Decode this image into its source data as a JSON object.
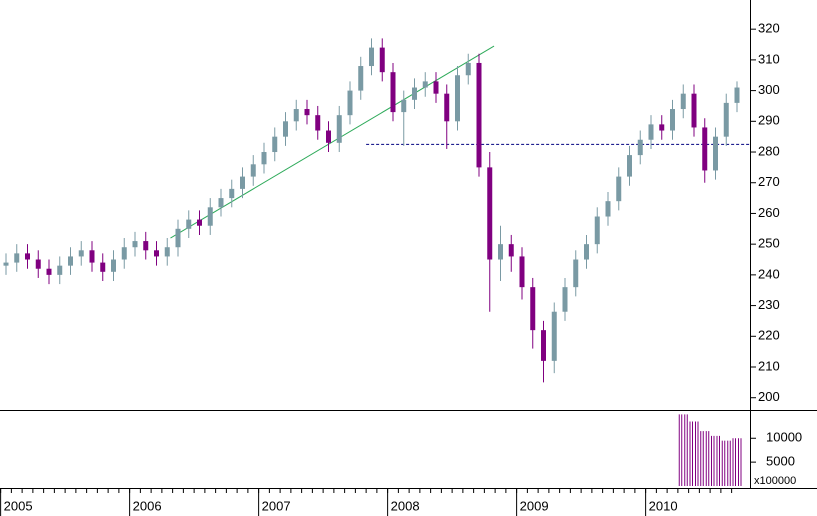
{
  "chart_data": [
    {
      "type": "candlestick",
      "categories": [
        "2005",
        null,
        null,
        null,
        null,
        null,
        null,
        null,
        null,
        null,
        null,
        null,
        "2006",
        null,
        null,
        null,
        null,
        null,
        null,
        null,
        null,
        null,
        null,
        null,
        "2007",
        null,
        null,
        null,
        null,
        null,
        null,
        null,
        null,
        null,
        null,
        null,
        "2008",
        null,
        null,
        null,
        null,
        null,
        null,
        null,
        null,
        null,
        null,
        null,
        "2009",
        null,
        null,
        null,
        null,
        null,
        null,
        null,
        null,
        null,
        null,
        null,
        "2010",
        null,
        null,
        null,
        null,
        null,
        null,
        null,
        null
      ],
      "open": [
        243,
        244,
        247,
        245,
        242,
        240,
        243,
        246,
        248,
        244,
        241,
        245,
        249,
        251,
        248,
        246,
        249,
        255,
        258,
        256,
        262,
        265,
        268,
        272,
        276,
        280,
        285,
        290,
        294,
        292,
        287,
        283,
        292,
        300,
        308,
        314,
        306,
        293,
        297,
        301,
        303,
        299,
        290,
        305,
        309,
        275,
        245,
        250,
        246,
        236,
        222,
        212,
        228,
        236,
        245,
        250,
        259,
        264,
        272,
        279,
        284,
        289,
        287,
        294,
        299,
        288,
        274,
        285,
        296
      ],
      "high": [
        247,
        250,
        250,
        248,
        245,
        246,
        249,
        251,
        251,
        247,
        248,
        252,
        254,
        254,
        251,
        252,
        258,
        261,
        261,
        265,
        268,
        271,
        275,
        279,
        283,
        288,
        293,
        297,
        297,
        295,
        290,
        295,
        303,
        311,
        317,
        317,
        309,
        300,
        304,
        306,
        306,
        302,
        308,
        312,
        312,
        280,
        256,
        253,
        249,
        239,
        225,
        231,
        239,
        248,
        253,
        262,
        267,
        275,
        282,
        287,
        292,
        292,
        297,
        302,
        302,
        291,
        288,
        299,
        303
      ],
      "low": [
        240,
        241,
        242,
        239,
        237,
        237,
        240,
        243,
        241,
        238,
        238,
        242,
        246,
        245,
        243,
        243,
        246,
        252,
        253,
        253,
        259,
        262,
        265,
        269,
        273,
        277,
        282,
        287,
        289,
        284,
        280,
        280,
        289,
        297,
        305,
        303,
        290,
        282,
        294,
        298,
        296,
        281,
        287,
        302,
        272,
        228,
        238,
        241,
        232,
        216,
        205,
        208,
        225,
        233,
        242,
        247,
        256,
        261,
        269,
        276,
        281,
        284,
        284,
        291,
        285,
        270,
        271,
        282,
        293
      ],
      "close": [
        244,
        247,
        245,
        242,
        240,
        243,
        246,
        248,
        244,
        241,
        245,
        249,
        251,
        248,
        246,
        249,
        255,
        258,
        256,
        262,
        265,
        268,
        272,
        276,
        280,
        285,
        290,
        294,
        292,
        287,
        283,
        292,
        300,
        308,
        314,
        306,
        293,
        297,
        301,
        303,
        299,
        290,
        305,
        309,
        275,
        245,
        250,
        246,
        236,
        222,
        212,
        228,
        236,
        245,
        250,
        259,
        264,
        272,
        279,
        284,
        289,
        287,
        294,
        299,
        288,
        274,
        285,
        296,
        301
      ],
      "up_color": "#7a9aa4",
      "down_color": "#800080",
      "ylim": [
        196,
        329.5
      ],
      "yticks": [
        200,
        210,
        220,
        230,
        240,
        250,
        260,
        270,
        280,
        290,
        300,
        310,
        320
      ],
      "trendline": {
        "from": [
          15.3,
          252
        ],
        "to": [
          45.4,
          314.5
        ],
        "color": "#2eaa5a"
      },
      "hline": {
        "value": 282.5,
        "from": 33.5,
        "color": "#000080"
      }
    },
    {
      "type": "bar",
      "values": [
        null,
        null,
        null,
        null,
        null,
        null,
        null,
        null,
        null,
        null,
        null,
        null,
        null,
        null,
        null,
        null,
        null,
        null,
        null,
        null,
        null,
        null,
        null,
        null,
        null,
        null,
        null,
        null,
        null,
        null,
        null,
        null,
        null,
        null,
        null,
        null,
        null,
        null,
        null,
        null,
        null,
        null,
        null,
        null,
        null,
        null,
        null,
        null,
        null,
        null,
        null,
        null,
        null,
        null,
        null,
        null,
        null,
        null,
        null,
        null,
        null,
        null,
        null,
        15000,
        13500,
        11500,
        10500,
        9500,
        10000
      ],
      "color": "#800080",
      "ylim": [
        0,
        15500
      ],
      "yticks": [
        5000,
        10000
      ],
      "unit_label": "x100000"
    }
  ]
}
